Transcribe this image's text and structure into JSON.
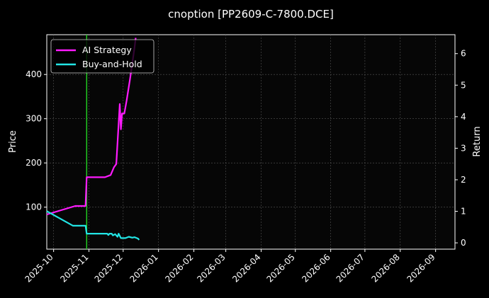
{
  "chart_data": {
    "type": "line",
    "title": "cnoption [PP2609-C-7800.DCE]",
    "ylabel": "Price",
    "y2label": "Return",
    "x_ticks": [
      "2025-10",
      "2025-11",
      "2025-12",
      "2026-01",
      "2026-02",
      "2026-03",
      "2026-04",
      "2026-05",
      "2026-06",
      "2026-07",
      "2026-08",
      "2026-09"
    ],
    "xlim": [
      "2025-09-25",
      "2026-09-18"
    ],
    "ylim": [
      5,
      490
    ],
    "y_ticks": [
      100,
      200,
      300,
      400
    ],
    "y2lim": [
      -0.2,
      6.6
    ],
    "y2_ticks": [
      0,
      1,
      2,
      3,
      4,
      5,
      6
    ],
    "grid": true,
    "legend_position": "top-left",
    "marker": {
      "date": "2025-10-30",
      "color": "#22cc22"
    },
    "series": [
      {
        "name": "AI Strategy",
        "color": "#ff1aff",
        "axis": "return",
        "points": [
          [
            "2025-09-25",
            0.9
          ],
          [
            "2025-10-20",
            1.17
          ],
          [
            "2025-10-29",
            1.17
          ],
          [
            "2025-10-30",
            2.08
          ],
          [
            "2025-11-15",
            2.08
          ],
          [
            "2025-11-20",
            2.15
          ],
          [
            "2025-11-23",
            2.4
          ],
          [
            "2025-11-25",
            2.5
          ],
          [
            "2025-11-28",
            4.4
          ],
          [
            "2025-11-29",
            3.6
          ],
          [
            "2025-11-30",
            4.1
          ],
          [
            "2025-12-02",
            4.1
          ],
          [
            "2025-12-04",
            4.5
          ],
          [
            "2025-12-07",
            5.2
          ],
          [
            "2025-12-09",
            5.7
          ],
          [
            "2025-12-11",
            6.2
          ],
          [
            "2025-12-12",
            6.5
          ]
        ]
      },
      {
        "name": "Buy-and-Hold",
        "color": "#22e5e5",
        "axis": "price",
        "points": [
          [
            "2025-09-25",
            91
          ],
          [
            "2025-10-18",
            58
          ],
          [
            "2025-10-29",
            58
          ],
          [
            "2025-10-30",
            40
          ],
          [
            "2025-11-15",
            40
          ],
          [
            "2025-11-17",
            40
          ],
          [
            "2025-11-18",
            37
          ],
          [
            "2025-11-19",
            40
          ],
          [
            "2025-11-21",
            40
          ],
          [
            "2025-11-22",
            36
          ],
          [
            "2025-11-24",
            39
          ],
          [
            "2025-11-26",
            33
          ],
          [
            "2025-11-27",
            40
          ],
          [
            "2025-11-29",
            30
          ],
          [
            "2025-12-03",
            30
          ],
          [
            "2025-12-06",
            33
          ],
          [
            "2025-12-09",
            31
          ],
          [
            "2025-12-11",
            32
          ],
          [
            "2025-12-13",
            30
          ],
          [
            "2025-12-14",
            29
          ],
          [
            "2025-12-15",
            26
          ]
        ]
      }
    ]
  }
}
